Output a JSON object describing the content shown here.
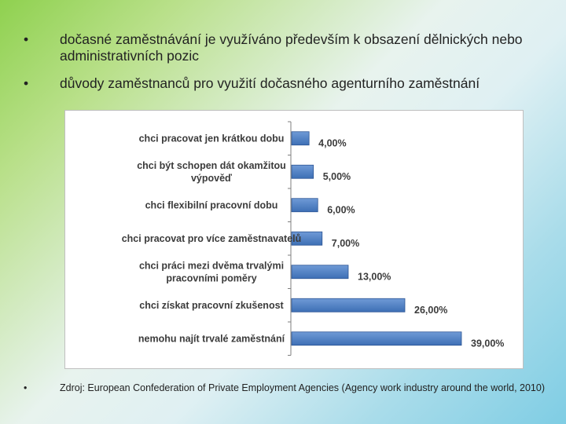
{
  "bullets": {
    "marker": "•",
    "item1": "dočasné zaměstnávání je využíváno především k obsazení dělnických nebo administrativních pozic",
    "item2": "důvody zaměstnanců pro využití dočasného agenturního zaměstnání",
    "source": "Zdroj: European Confederation of Private Employment Agencies (Agency work industry around the world, 2010)"
  },
  "chart_data": {
    "type": "bar",
    "orientation": "horizontal",
    "categories": [
      [
        "chci pracovat jen krátkou dobu"
      ],
      [
        "chci být schopen dát okamžitou",
        "výpověď"
      ],
      [
        "chci flexibilní pracovní dobu"
      ],
      [
        "chci pracovat pro více zaměstnavatelů"
      ],
      [
        "chci práci mezi dvěma trvalými",
        "pracovními poměry"
      ],
      [
        "chci získat pracovní zkušenost"
      ],
      [
        "nemohu najít trvalé zaměstnání"
      ]
    ],
    "values": [
      4,
      5,
      6,
      7,
      13,
      26,
      39
    ],
    "data_labels": [
      "4,00%",
      "5,00%",
      "6,00%",
      "7,00%",
      "13,00%",
      "26,00%",
      "39,00%"
    ],
    "xlim": [
      0,
      39
    ],
    "bar_color": "#3d6fb5",
    "title": "",
    "xlabel": "",
    "ylabel": ""
  }
}
